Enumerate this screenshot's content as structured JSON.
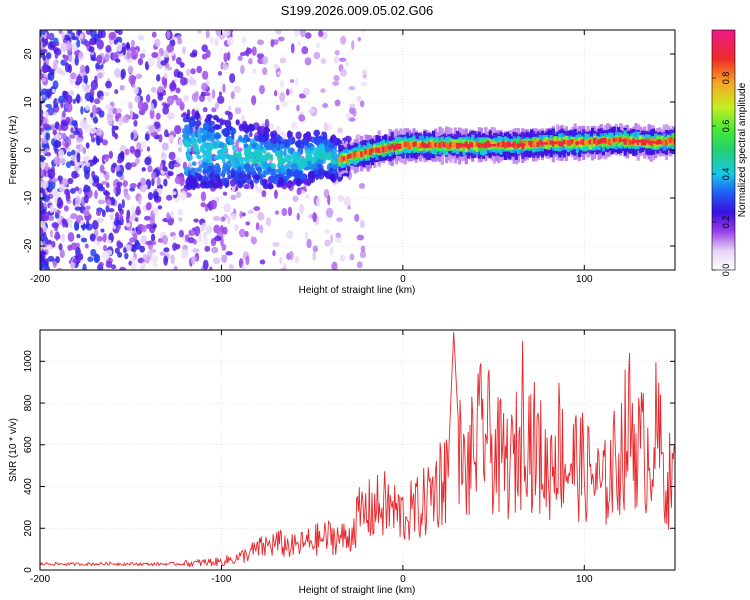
{
  "figure_title": "S199.2026.009.05.02.G06",
  "colors": {
    "snr_line": "#e8262a",
    "axes": "#000000",
    "grid": "#bbbbbb",
    "colormap": [
      "#ffffff",
      "#e7d4f7",
      "#b883ee",
      "#7b22dd",
      "#3a10e0",
      "#1f5cf5",
      "#18c8e8",
      "#2ee86a",
      "#c8ee22",
      "#f5a623",
      "#ee2a2a",
      "#ee1a6a"
    ]
  },
  "chart_data": [
    {
      "type": "heatmap",
      "title": "",
      "xlabel": "Height of straight line (km)",
      "ylabel": "Frequency (Hz)",
      "xlim": [
        -200,
        150
      ],
      "ylim": [
        -25,
        25
      ],
      "xticks": [
        -200,
        -100,
        0,
        100
      ],
      "yticks": [
        20,
        10,
        0,
        -10,
        -20
      ],
      "xtick_labels": [
        "-200",
        "-100",
        "0",
        "100"
      ],
      "ytick_labels": [
        "20",
        "10",
        "0",
        "-10",
        "-20"
      ],
      "grid": true,
      "ridge": {
        "description_points_x": [
          -110,
          -90,
          -70,
          -55,
          -45,
          -35,
          -25,
          -15,
          0,
          20,
          40,
          60,
          80,
          100,
          120,
          140,
          150
        ],
        "frequency_hz": [
          0,
          -1,
          -2,
          -2,
          -1,
          -2,
          -1,
          0,
          1,
          1,
          1,
          1,
          1.5,
          1.5,
          2,
          1.5,
          2
        ]
      },
      "colorbar": {
        "label": "Normalized spectral amplitude",
        "range": [
          0,
          1
        ],
        "ticks": [
          0.0,
          0.2,
          0.4,
          0.6,
          0.8
        ],
        "tick_labels": [
          "0.0",
          "0.2",
          "0.4",
          "0.6",
          "0.8"
        ]
      }
    },
    {
      "type": "line",
      "title": "",
      "xlabel": "Height of straight line (km)",
      "ylabel": "SNR (10 * v/v)",
      "xlim": [
        -200,
        150
      ],
      "ylim": [
        0,
        1150
      ],
      "xticks": [
        -200,
        -100,
        0,
        100
      ],
      "yticks": [
        0,
        200,
        400,
        600,
        800,
        1000
      ],
      "xtick_labels": [
        "-200",
        "-100",
        "0",
        "100"
      ],
      "ytick_labels": [
        "0",
        "200",
        "400",
        "600",
        "800",
        "1000"
      ],
      "grid": true,
      "series": [
        {
          "name": "SNR",
          "x": [
            -200,
            -180,
            -160,
            -140,
            -120,
            -100,
            -90,
            -80,
            -70,
            -60,
            -50,
            -40,
            -30,
            -25,
            -20,
            -10,
            0,
            10,
            20,
            25,
            28,
            30,
            32,
            35,
            40,
            45,
            50,
            55,
            60,
            65,
            67,
            70,
            75,
            80,
            85,
            90,
            95,
            100,
            105,
            110,
            115,
            120,
            125,
            130,
            135,
            140,
            145,
            150
          ],
          "values": [
            30,
            28,
            30,
            28,
            30,
            40,
            60,
            100,
            130,
            110,
            140,
            160,
            150,
            250,
            280,
            310,
            260,
            300,
            420,
            500,
            1140,
            800,
            500,
            450,
            600,
            680,
            560,
            520,
            500,
            620,
            900,
            620,
            560,
            460,
            640,
            500,
            520,
            480,
            450,
            380,
            480,
            560,
            700,
            580,
            560,
            660,
            420,
            450
          ]
        }
      ]
    }
  ]
}
